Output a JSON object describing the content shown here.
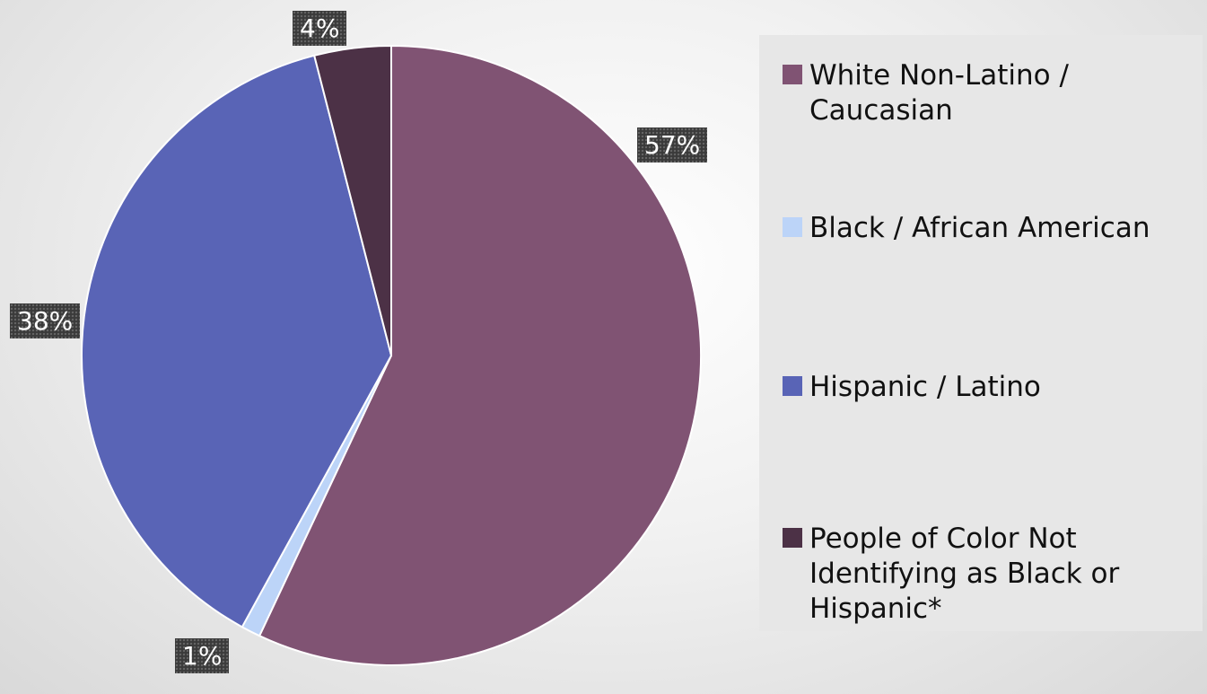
{
  "chart_data": {
    "type": "pie",
    "title": "",
    "start_angle_deg": 0,
    "direction": "clockwise",
    "legend_position": "right",
    "slices": [
      {
        "label": "White Non-Latino / Caucasian",
        "value": 57,
        "display": "57%",
        "color": "#805373"
      },
      {
        "label": "Black / African American",
        "value": 1,
        "display": "1%",
        "color": "#bcd4f8"
      },
      {
        "label": "Hispanic / Latino",
        "value": 38,
        "display": "38%",
        "color": "#5964b6"
      },
      {
        "label": "People of Color Not Identifying as Black or Hispanic*",
        "value": 4,
        "display": "4%",
        "color": "#4c3146"
      }
    ]
  }
}
